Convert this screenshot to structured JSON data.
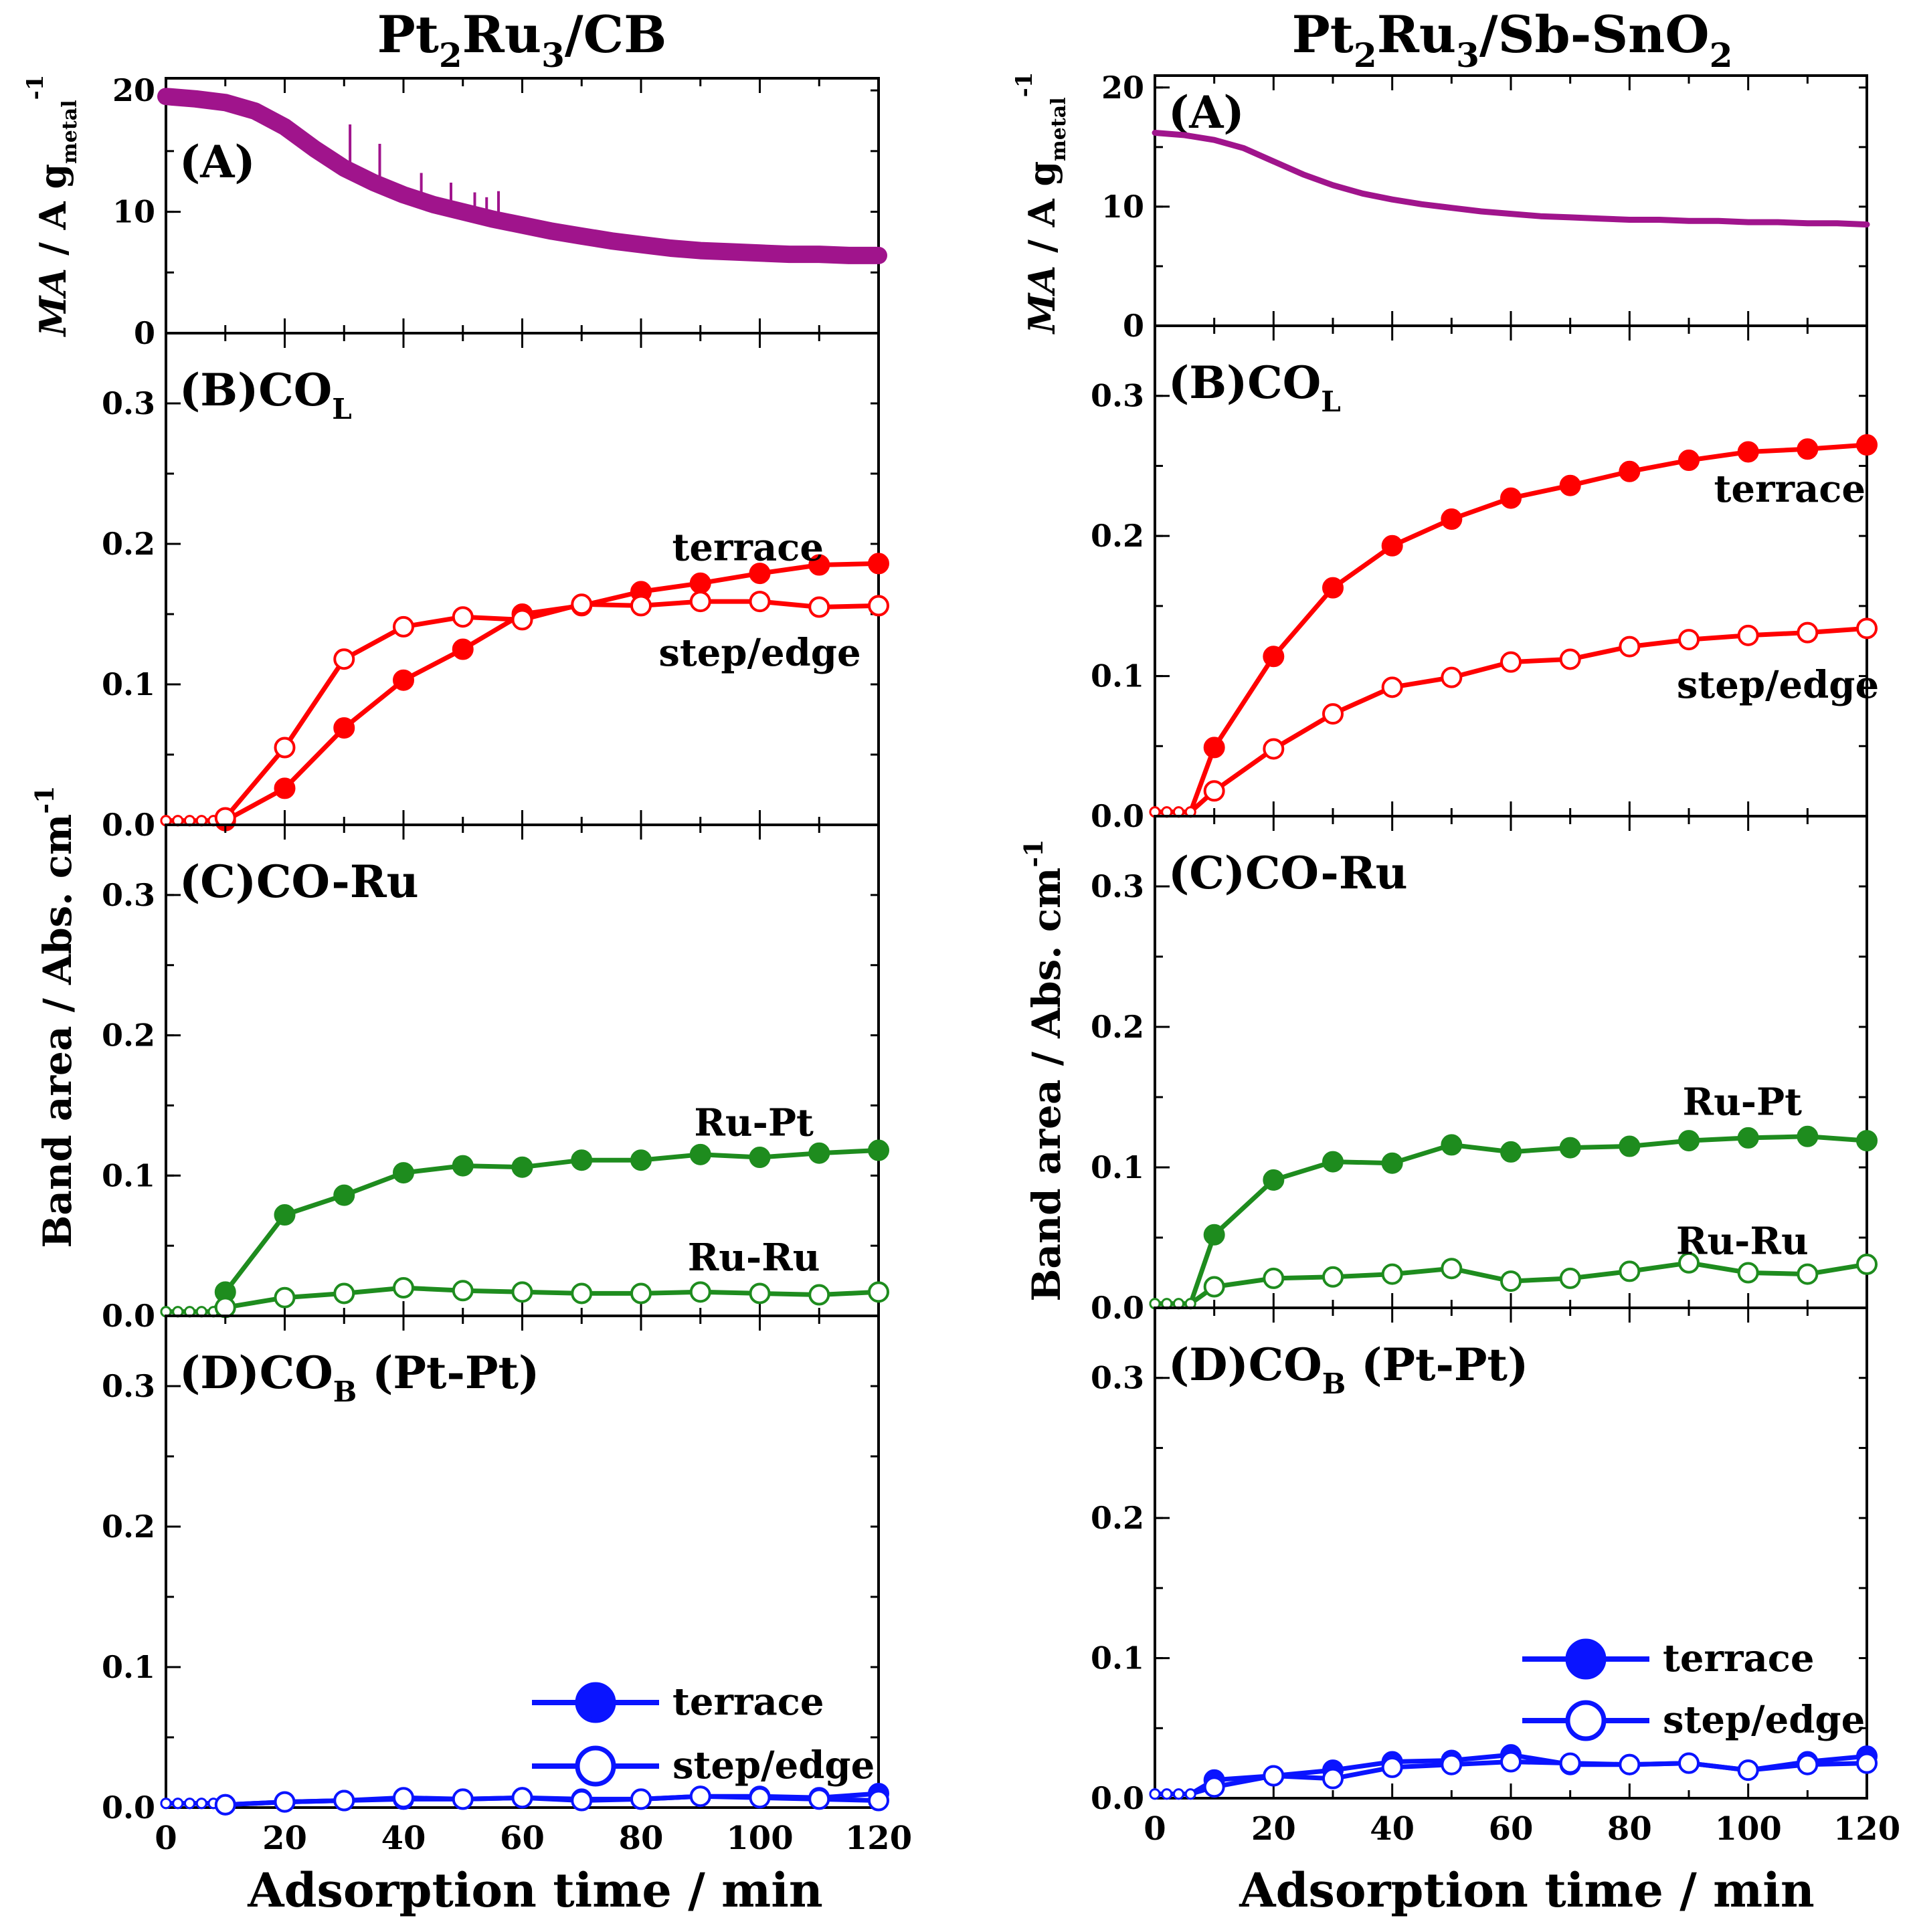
{
  "chart_data": [
    {
      "type": "line",
      "column_title": {
        "main": "Pt",
        "sub1": "2",
        "mid": "Ru",
        "sub2": "3",
        "tail": "/CB"
      },
      "xlabel": "Adsorption time / min",
      "xlim": [
        0,
        120
      ],
      "x_ticks": [
        "0",
        "20",
        "40",
        "60",
        "80",
        "100",
        "120"
      ],
      "ylabel_top": {
        "a": "MA",
        "b": " / A g",
        "c": "metal",
        "d": "-1"
      },
      "ylabel_bottom": {
        "a": "Band area / Abs. cm",
        "b": "-1"
      },
      "panels": [
        {
          "id": "A",
          "label": "(A)",
          "ylim": [
            0,
            21
          ],
          "y_ticks": [
            "0",
            "10",
            "20"
          ],
          "series": [
            {
              "name": "MA",
              "style": "noisy",
              "color": "#a0148c",
              "x": [
                0,
                5,
                10,
                15,
                20,
                25,
                30,
                35,
                40,
                45,
                50,
                55,
                60,
                65,
                70,
                75,
                80,
                85,
                90,
                95,
                100,
                105,
                110,
                115,
                120
              ],
              "y": [
                19.5,
                19.3,
                19.0,
                18.3,
                17.0,
                15.2,
                13.6,
                12.4,
                11.4,
                10.6,
                10.0,
                9.4,
                8.9,
                8.4,
                8.0,
                7.6,
                7.3,
                7.0,
                6.8,
                6.7,
                6.6,
                6.5,
                6.5,
                6.4,
                6.4
              ],
              "spikes": [
                [
                  31,
                  17.2
                ],
                [
                  36,
                  15.6
                ],
                [
                  43,
                  13.2
                ],
                [
                  48,
                  12.4
                ],
                [
                  52,
                  11.6
                ],
                [
                  56,
                  11.7
                ],
                [
                  54,
                  11.2
                ]
              ]
            }
          ]
        },
        {
          "id": "B",
          "label": "(B)CO",
          "label_sub": "L",
          "ylim": [
            0,
            0.35
          ],
          "y_ticks": [
            "0.0",
            "0.1",
            "0.2",
            "0.3"
          ],
          "annotations": [
            {
              "text": "terrace",
              "x": 98,
              "y": 0.197
            },
            {
              "text": "step/edge",
              "x": 100,
              "y": 0.122
            }
          ],
          "series": [
            {
              "name": "terrace",
              "color": "#ff0000",
              "filled": true,
              "start": [
                0,
                2,
                4,
                6,
                8
              ],
              "x": [
                10,
                20,
                30,
                40,
                50,
                60,
                70,
                80,
                90,
                100,
                110,
                120
              ],
              "y": [
                0.003,
                0.026,
                0.069,
                0.103,
                0.125,
                0.15,
                0.156,
                0.166,
                0.172,
                0.179,
                0.185,
                0.186
              ]
            },
            {
              "name": "step/edge",
              "color": "#ff0000",
              "filled": false,
              "start": [
                0,
                2,
                4,
                6,
                8
              ],
              "x": [
                10,
                20,
                30,
                40,
                50,
                60,
                70,
                80,
                90,
                100,
                110,
                120
              ],
              "y": [
                0.005,
                0.055,
                0.118,
                0.141,
                0.148,
                0.146,
                0.157,
                0.156,
                0.159,
                0.159,
                0.155,
                0.156
              ]
            }
          ]
        },
        {
          "id": "C",
          "label": "(C)CO-Ru",
          "ylim": [
            0,
            0.35
          ],
          "y_ticks": [
            "0.0",
            "0.1",
            "0.2",
            "0.3"
          ],
          "annotations": [
            {
              "text": "Ru-Pt",
              "x": 99,
              "y": 0.137
            },
            {
              "text": "Ru-Ru",
              "x": 99,
              "y": 0.041
            }
          ],
          "series": [
            {
              "name": "Ru-Pt",
              "color": "#1e8c1e",
              "filled": true,
              "start": [
                0,
                2,
                4,
                6,
                8
              ],
              "x": [
                10,
                20,
                30,
                40,
                50,
                60,
                70,
                80,
                90,
                100,
                110,
                120
              ],
              "y": [
                0.017,
                0.072,
                0.086,
                0.102,
                0.107,
                0.106,
                0.111,
                0.111,
                0.115,
                0.113,
                0.116,
                0.118
              ]
            },
            {
              "name": "Ru-Ru",
              "color": "#1e8c1e",
              "filled": false,
              "start": [
                0,
                2,
                4,
                6,
                8
              ],
              "x": [
                10,
                20,
                30,
                40,
                50,
                60,
                70,
                80,
                90,
                100,
                110,
                120
              ],
              "y": [
                0.006,
                0.013,
                0.016,
                0.02,
                0.018,
                0.017,
                0.016,
                0.016,
                0.017,
                0.016,
                0.015,
                0.017
              ]
            }
          ]
        },
        {
          "id": "D",
          "label": "(D)CO",
          "label_sub": "B",
          "label_tail": " (Pt-Pt)",
          "ylim": [
            0,
            0.35
          ],
          "y_ticks": [
            "0.0",
            "0.1",
            "0.2",
            "0.3"
          ],
          "legend": {
            "placement": "bottom-right",
            "entries": [
              "terrace",
              "step/edge"
            ],
            "color": "#0a14ff"
          },
          "series": [
            {
              "name": "terrace",
              "color": "#0a14ff",
              "filled": true,
              "start": [
                0,
                2,
                4,
                6,
                8
              ],
              "x": [
                10,
                20,
                30,
                40,
                50,
                60,
                70,
                80,
                90,
                100,
                110,
                120
              ],
              "y": [
                0.002,
                0.004,
                0.005,
                0.006,
                0.006,
                0.007,
                0.006,
                0.006,
                0.008,
                0.008,
                0.007,
                0.01
              ]
            },
            {
              "name": "step/edge",
              "color": "#0a14ff",
              "filled": false,
              "start": [
                0,
                2,
                4,
                6,
                8
              ],
              "x": [
                10,
                20,
                30,
                40,
                50,
                60,
                70,
                80,
                90,
                100,
                110,
                120
              ],
              "y": [
                0.002,
                0.004,
                0.005,
                0.007,
                0.006,
                0.007,
                0.005,
                0.006,
                0.008,
                0.007,
                0.006,
                0.005
              ]
            }
          ]
        }
      ]
    },
    {
      "type": "line",
      "column_title": {
        "main": "Pt",
        "sub1": "2",
        "mid": "Ru",
        "sub2": "3",
        "tail": "/Sb-SnO",
        "sub3": "2"
      },
      "xlabel": "Adsorption time / min",
      "xlim": [
        0,
        120
      ],
      "x_ticks": [
        "0",
        "20",
        "40",
        "60",
        "80",
        "100",
        "120"
      ],
      "ylabel_top": {
        "a": "MA",
        "b": " / A g",
        "c": "metal",
        "d": "-1"
      },
      "ylabel_bottom": {
        "a": "Band area / Abs. cm",
        "b": "-1"
      },
      "panels": [
        {
          "id": "A",
          "label": "(A)",
          "ylim": [
            0,
            21
          ],
          "y_ticks": [
            "0",
            "10",
            "20"
          ],
          "series": [
            {
              "name": "MA",
              "style": "smooth",
              "color": "#a0148c",
              "x": [
                0,
                5,
                10,
                15,
                20,
                25,
                30,
                35,
                40,
                45,
                50,
                55,
                60,
                65,
                70,
                75,
                80,
                85,
                90,
                95,
                100,
                105,
                110,
                115,
                120
              ],
              "y": [
                16.2,
                16.0,
                15.6,
                14.9,
                13.8,
                12.7,
                11.8,
                11.1,
                10.6,
                10.2,
                9.9,
                9.6,
                9.4,
                9.2,
                9.1,
                9.0,
                8.9,
                8.9,
                8.8,
                8.8,
                8.7,
                8.7,
                8.6,
                8.6,
                8.5
              ],
              "spikes": []
            }
          ]
        },
        {
          "id": "B",
          "label": "(B)CO",
          "label_sub": "L",
          "ylim": [
            0,
            0.35
          ],
          "y_ticks": [
            "0.0",
            "0.1",
            "0.2",
            "0.3"
          ],
          "annotations": [
            {
              "text": "terrace",
              "x": 107,
              "y": 0.233
            },
            {
              "text": "step/edge",
              "x": 105,
              "y": 0.093
            }
          ],
          "series": [
            {
              "name": "terrace",
              "color": "#ff0000",
              "filled": true,
              "start": [
                0,
                2,
                4,
                6
              ],
              "x": [
                10,
                20,
                30,
                40,
                50,
                60,
                70,
                80,
                90,
                100,
                110,
                120
              ],
              "y": [
                0.049,
                0.114,
                0.163,
                0.193,
                0.212,
                0.227,
                0.236,
                0.246,
                0.254,
                0.26,
                0.262,
                0.265
              ]
            },
            {
              "name": "step/edge",
              "color": "#ff0000",
              "filled": false,
              "start": [
                0,
                2,
                4,
                6
              ],
              "x": [
                10,
                20,
                30,
                40,
                50,
                60,
                70,
                80,
                90,
                100,
                110,
                120
              ],
              "y": [
                0.018,
                0.048,
                0.073,
                0.092,
                0.099,
                0.11,
                0.112,
                0.121,
                0.126,
                0.129,
                0.131,
                0.134
              ]
            }
          ]
        },
        {
          "id": "C",
          "label": "(C)CO-Ru",
          "ylim": [
            0,
            0.35
          ],
          "y_ticks": [
            "0.0",
            "0.1",
            "0.2",
            "0.3"
          ],
          "annotations": [
            {
              "text": "Ru-Pt",
              "x": 99,
              "y": 0.146
            },
            {
              "text": "Ru-Ru",
              "x": 99,
              "y": 0.047
            }
          ],
          "series": [
            {
              "name": "Ru-Pt",
              "color": "#1e8c1e",
              "filled": true,
              "start": [
                0,
                2,
                4,
                6
              ],
              "x": [
                10,
                20,
                30,
                40,
                50,
                60,
                70,
                80,
                90,
                100,
                110,
                120
              ],
              "y": [
                0.052,
                0.091,
                0.104,
                0.103,
                0.116,
                0.111,
                0.114,
                0.115,
                0.119,
                0.121,
                0.122,
                0.119
              ]
            },
            {
              "name": "Ru-Ru",
              "color": "#1e8c1e",
              "filled": false,
              "start": [
                0,
                2,
                4,
                6
              ],
              "x": [
                10,
                20,
                30,
                40,
                50,
                60,
                70,
                80,
                90,
                100,
                110,
                120
              ],
              "y": [
                0.015,
                0.021,
                0.022,
                0.024,
                0.028,
                0.019,
                0.021,
                0.026,
                0.032,
                0.025,
                0.024,
                0.031
              ]
            }
          ]
        },
        {
          "id": "D",
          "label": "(D)CO",
          "label_sub": "B",
          "label_tail": " (Pt-Pt)",
          "ylim": [
            0,
            0.35
          ],
          "y_ticks": [
            "0.0",
            "0.1",
            "0.2",
            "0.3"
          ],
          "legend": {
            "placement": "bottom-right",
            "entries": [
              "terrace",
              "step/edge"
            ],
            "color": "#0a14ff"
          },
          "series": [
            {
              "name": "terrace",
              "color": "#0a14ff",
              "filled": true,
              "start": [
                0,
                2,
                4,
                6
              ],
              "x": [
                10,
                20,
                30,
                40,
                50,
                60,
                70,
                80,
                90,
                100,
                110,
                120
              ],
              "y": [
                0.013,
                0.016,
                0.02,
                0.026,
                0.027,
                0.031,
                0.024,
                0.024,
                0.025,
                0.02,
                0.026,
                0.03
              ]
            },
            {
              "name": "step/edge",
              "color": "#0a14ff",
              "filled": false,
              "start": [
                0,
                2,
                4,
                6
              ],
              "x": [
                10,
                20,
                30,
                40,
                50,
                60,
                70,
                80,
                90,
                100,
                110,
                120
              ],
              "y": [
                0.008,
                0.016,
                0.014,
                0.022,
                0.024,
                0.026,
                0.025,
                0.024,
                0.025,
                0.02,
                0.024,
                0.025
              ]
            }
          ]
        }
      ]
    }
  ]
}
